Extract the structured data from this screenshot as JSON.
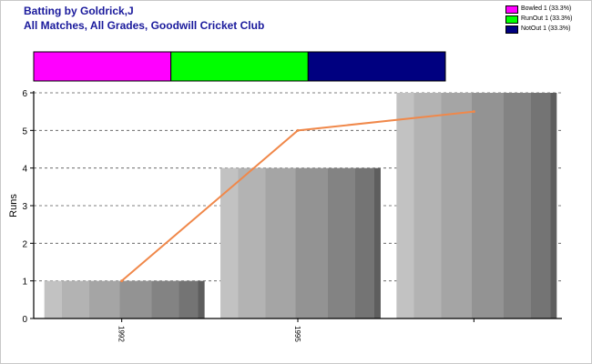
{
  "title": {
    "line1": "Batting by Goldrick,J",
    "line2": "All Matches, All Grades, Goodwill Cricket Club"
  },
  "legend": [
    {
      "label": "Bowled 1 (33.3%)",
      "color": "#ff00ff"
    },
    {
      "label": "RunOut 1 (33.3%)",
      "color": "#00ff00"
    },
    {
      "label": "NotOut 1 (33.3%)",
      "color": "#000080"
    }
  ],
  "dismissal_bar": {
    "segments": [
      {
        "name": "Bowled",
        "fraction": 0.3333,
        "color": "#ff00ff"
      },
      {
        "name": "RunOut",
        "fraction": 0.3333,
        "color": "#00ff00"
      },
      {
        "name": "NotOut",
        "fraction": 0.3334,
        "color": "#000080"
      }
    ]
  },
  "chart_data": {
    "type": "bar",
    "categories": [
      "1992",
      "1995",
      ""
    ],
    "values": [
      1,
      4,
      6
    ],
    "line": [
      1,
      5,
      5.5
    ],
    "line_color": "#f0884a",
    "ylabel": "Runs",
    "xlabel": "",
    "ylim": [
      0,
      6
    ],
    "yticks": [
      0,
      1,
      2,
      3,
      4,
      5,
      6
    ],
    "grid": true
  }
}
